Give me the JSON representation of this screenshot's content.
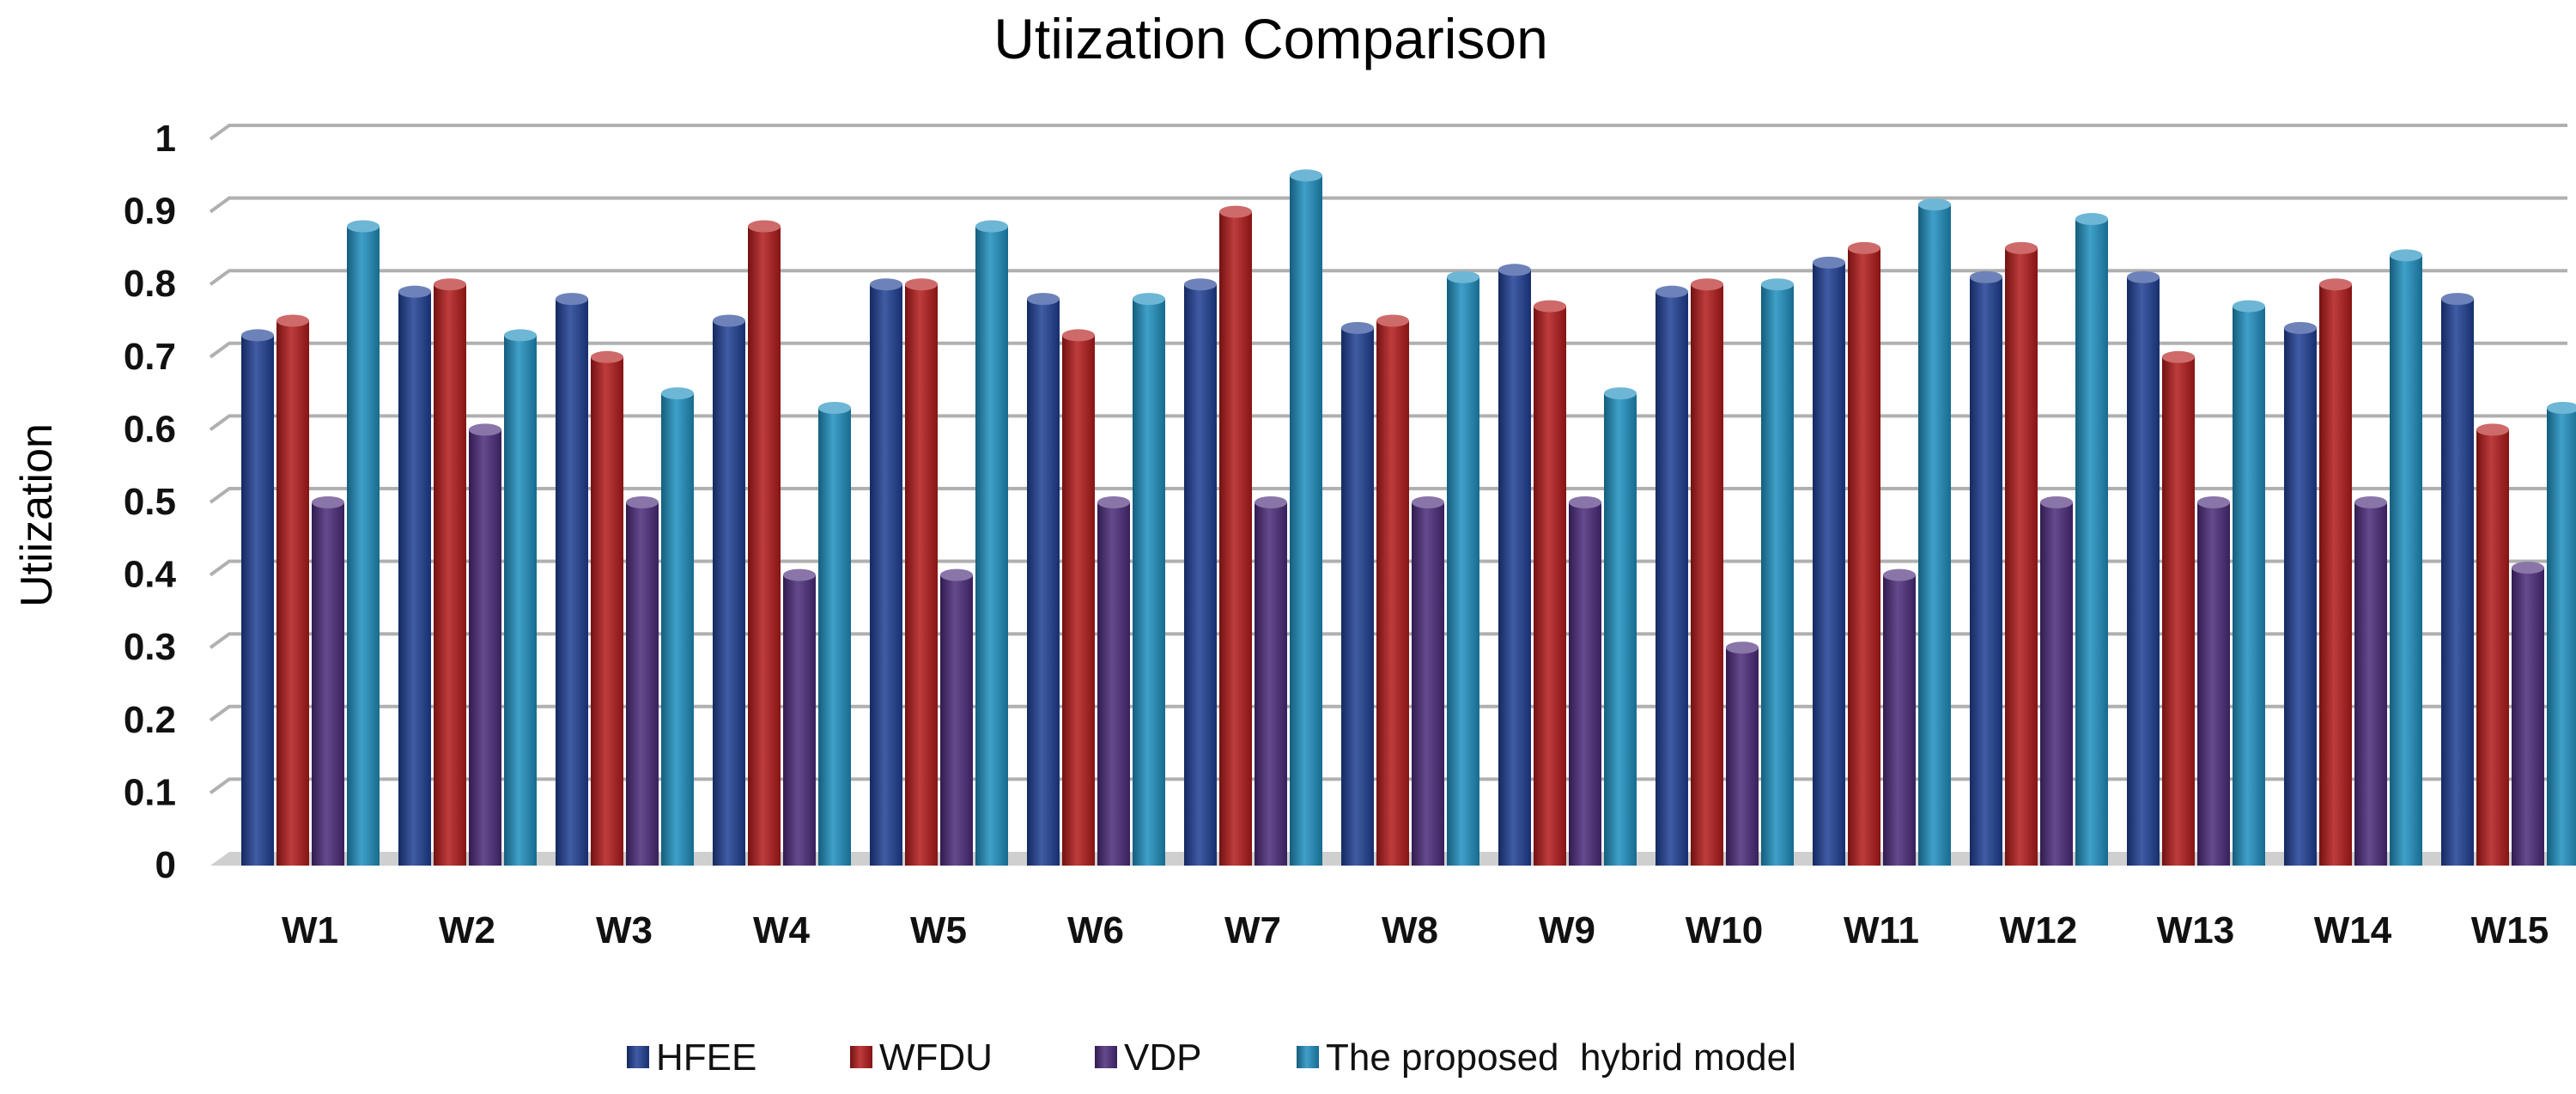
{
  "chart_data": {
    "type": "bar",
    "title": "Utiization Comparison",
    "xlabel": "",
    "ylabel": "Utiization",
    "ylim": [
      0,
      1
    ],
    "yticks": [
      "0",
      "0.1",
      "0.2",
      "0.3",
      "0.4",
      "0.5",
      "0.6",
      "0.7",
      "0.8",
      "0.9",
      "1"
    ],
    "grid": true,
    "legend_position": "bottom",
    "categories": [
      "W1",
      "W2",
      "W3",
      "W4",
      "W5",
      "W6",
      "W7",
      "W8",
      "W9",
      "W10",
      "W11",
      "W12",
      "W13",
      "W14",
      "W15"
    ],
    "series": [
      {
        "name": "HFEE",
        "color": "#1f3f94",
        "values": [
          0.73,
          0.79,
          0.78,
          0.75,
          0.8,
          0.78,
          0.8,
          0.74,
          0.82,
          0.79,
          0.83,
          0.81,
          0.81,
          0.74,
          0.78
        ]
      },
      {
        "name": "WFDU",
        "color": "#b31a1a",
        "values": [
          0.75,
          0.8,
          0.7,
          0.88,
          0.8,
          0.73,
          0.9,
          0.75,
          0.77,
          0.8,
          0.85,
          0.85,
          0.7,
          0.8,
          0.6
        ]
      },
      {
        "name": "VDP",
        "color": "#4b2a7a",
        "values": [
          0.5,
          0.6,
          0.5,
          0.4,
          0.4,
          0.5,
          0.5,
          0.5,
          0.5,
          0.3,
          0.4,
          0.5,
          0.5,
          0.5,
          0.41
        ]
      },
      {
        "name": "The proposed  hybrid model",
        "color": "#1e8fbf",
        "values": [
          0.88,
          0.73,
          0.65,
          0.63,
          0.88,
          0.78,
          0.95,
          0.81,
          0.65,
          0.8,
          0.91,
          0.89,
          0.77,
          0.84,
          0.63
        ]
      }
    ]
  }
}
